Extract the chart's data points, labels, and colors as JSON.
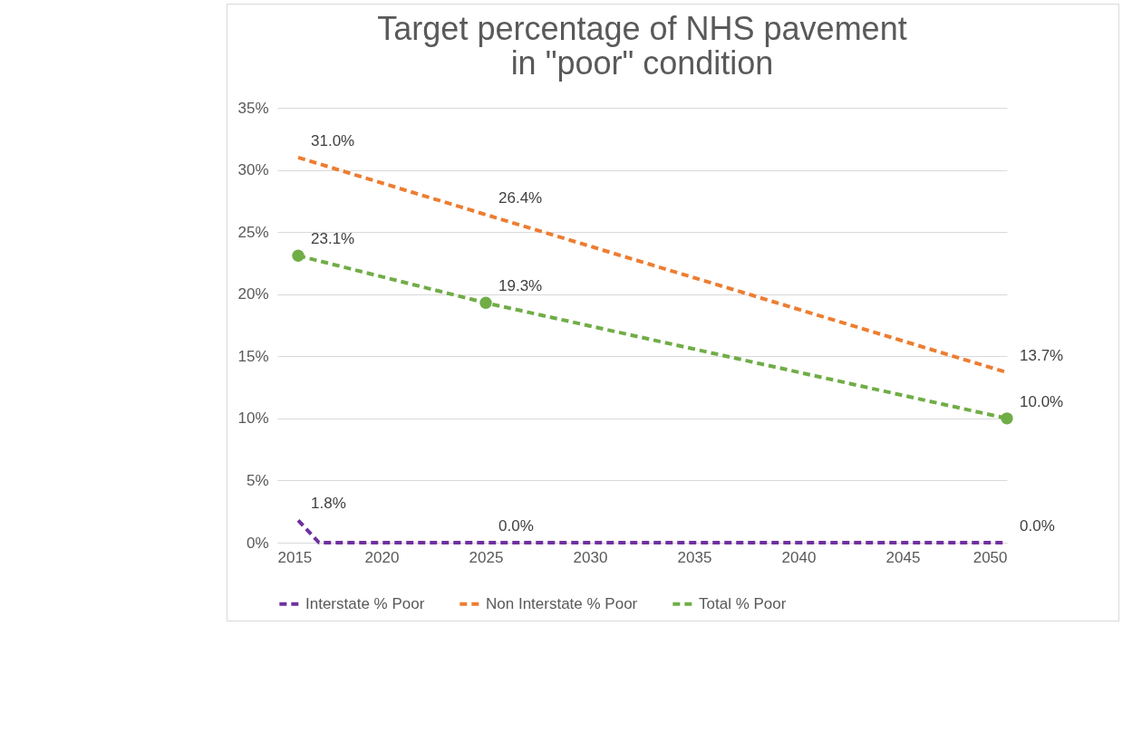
{
  "chart_data": {
    "type": "line",
    "title": "Target percentage of NHS pavement in \"poor\" condition",
    "xlim": [
      2015,
      2050
    ],
    "xticks": [
      2015,
      2020,
      2025,
      2030,
      2035,
      2040,
      2045,
      2050
    ],
    "ylim": [
      0,
      35
    ],
    "yticks": [
      {
        "value": 0,
        "label": "0%"
      },
      {
        "value": 5,
        "label": "5%"
      },
      {
        "value": 10,
        "label": "10%"
      },
      {
        "value": 15,
        "label": "15%"
      },
      {
        "value": 20,
        "label": "20%"
      },
      {
        "value": 25,
        "label": "25%"
      },
      {
        "value": 30,
        "label": "30%"
      },
      {
        "value": 35,
        "label": "35%"
      }
    ],
    "grid": "y",
    "legend": "bottom",
    "line_style": "dashed",
    "series": [
      {
        "name": "Interstate % Poor",
        "color": "#7030a0",
        "x": [
          2016,
          2017,
          2025,
          2050
        ],
        "values": [
          1.8,
          0.0,
          0.0,
          0.0
        ],
        "value_labels": [
          "1.8%",
          null,
          "0.0%",
          "0.0%"
        ]
      },
      {
        "name": "Non Interstate % Poor",
        "color": "#ed7d31",
        "x": [
          2016,
          2025,
          2050
        ],
        "values": [
          31.0,
          26.4,
          13.7
        ],
        "value_labels": [
          "31.0%",
          "26.4%",
          "13.7%"
        ]
      },
      {
        "name": "Total % Poor",
        "color": "#70ad47",
        "x": [
          2016,
          2025,
          2050
        ],
        "values": [
          23.1,
          19.3,
          10.0
        ],
        "value_labels": [
          "23.1%",
          "19.3%",
          "10.0%"
        ],
        "marker": "circle"
      }
    ]
  }
}
